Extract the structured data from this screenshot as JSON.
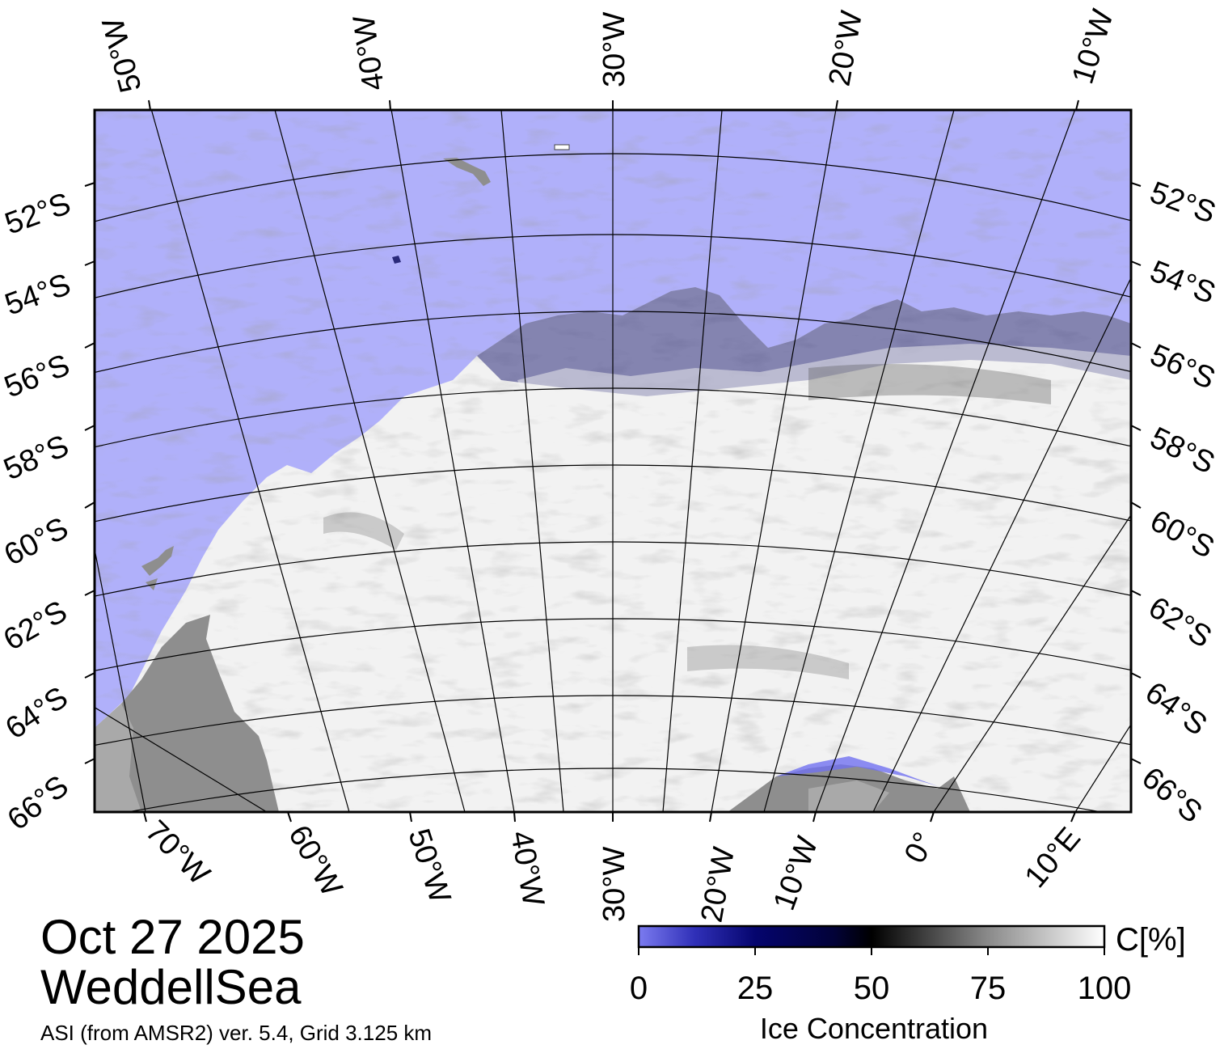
{
  "map": {
    "date": "Oct 27 2025",
    "region": "WeddellSea",
    "source": "ASI (from AMSR2) ver. 5.4,  Grid 3.125 km",
    "top_lon_labels": [
      "50°W",
      "40°W",
      "30°W",
      "20°W",
      "10°W"
    ],
    "bottom_lon_labels": [
      "70°W",
      "60°W",
      "50°W",
      "40°W",
      "30°W",
      "20°W",
      "10°W",
      "0°",
      "10°E"
    ],
    "left_lat_labels": [
      "52°S",
      "54°S",
      "56°S",
      "58°S",
      "60°S",
      "62°S",
      "64°S",
      "66°S"
    ],
    "right_lat_labels": [
      "52°S",
      "54°S",
      "56°S",
      "58°S",
      "60°S",
      "62°S",
      "64°S",
      "66°S"
    ],
    "colors": {
      "open_water": "#b0b0fa",
      "land": "#8e8e8e",
      "land_light": "#a9a9a9",
      "ice_full": "#f4f4f4"
    }
  },
  "colorbar": {
    "title": "Ice Concentration",
    "unit": "C[%]",
    "ticks": [
      "0",
      "25",
      "50",
      "75",
      "100"
    ],
    "tick_values": [
      0,
      25,
      50,
      75,
      100
    ],
    "range": [
      0,
      100
    ]
  }
}
